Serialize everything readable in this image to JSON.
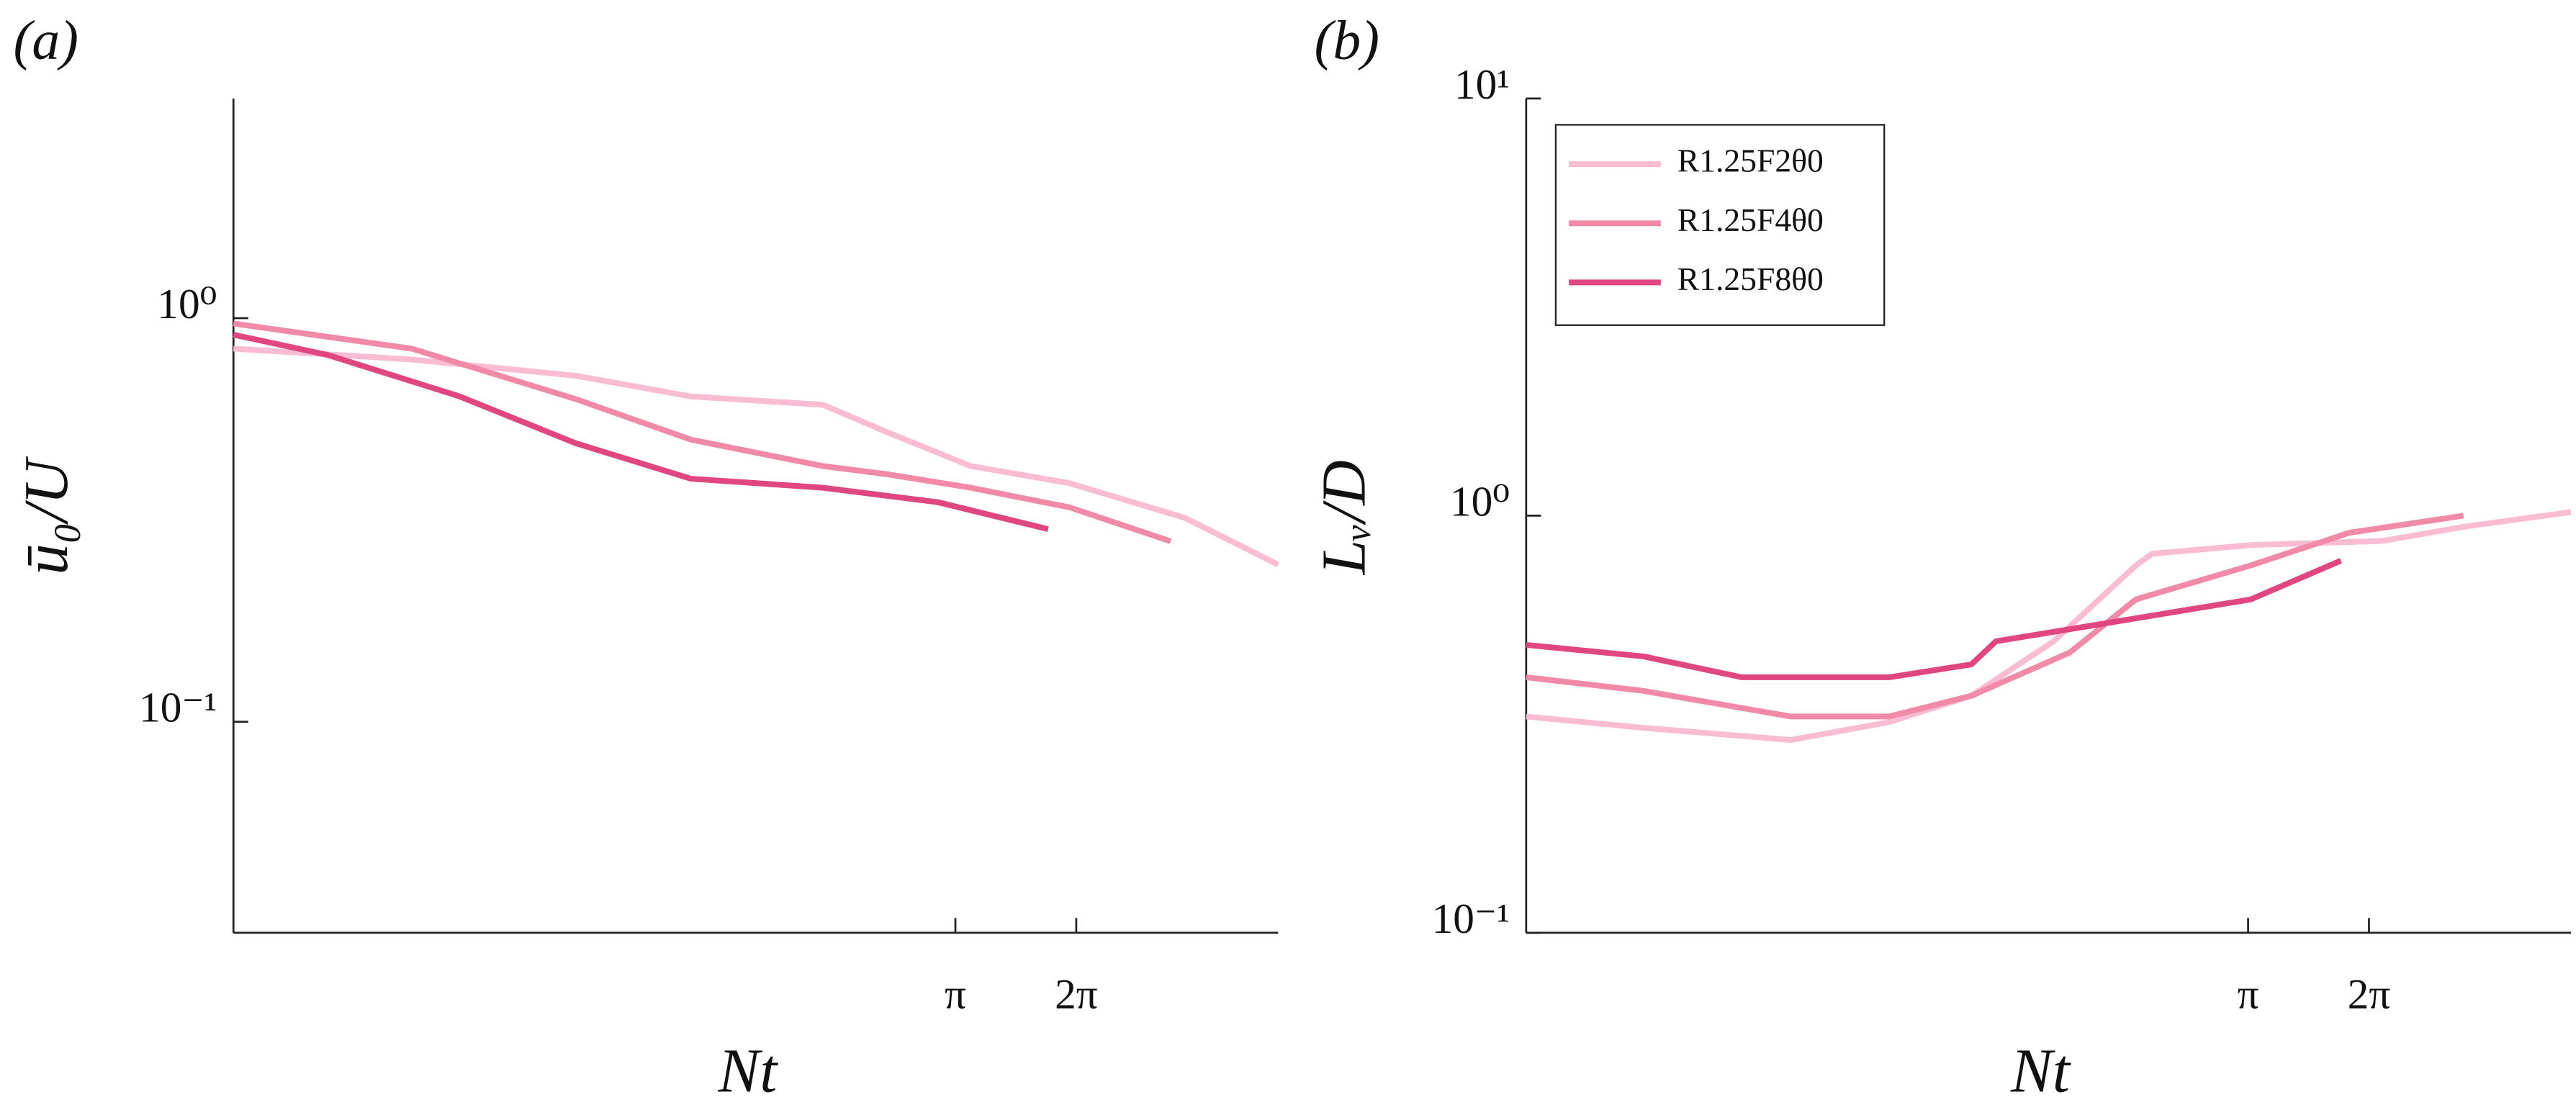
{
  "chart_data": [
    {
      "type": "line",
      "label": "(a)",
      "xlabel": "Nt",
      "ylabel": "ū₀/U",
      "log_x": true,
      "log_y": true,
      "xlim": [
        0.05,
        20
      ],
      "ylim": [
        0.03,
        3.5
      ],
      "xticks": [
        {
          "value": 3.14159,
          "label": "π"
        },
        {
          "value": 6.28318,
          "label": "2π"
        }
      ],
      "yticks": [
        {
          "value": 0.1,
          "label": "10⁻¹"
        },
        {
          "value": 1,
          "label": "10⁰"
        }
      ],
      "series": [
        {
          "color": "#f9bcd3",
          "x": [
            0.05,
            0.139,
            0.356,
            0.689,
            1.47,
            2.14,
            3.43,
            6.04,
            11.7,
            20
          ],
          "values": [
            0.84,
            0.79,
            0.72,
            0.64,
            0.61,
            0.52,
            0.43,
            0.39,
            0.32,
            0.245
          ]
        },
        {
          "color": "#f08aa8",
          "x": [
            0.05,
            0.139,
            0.356,
            0.689,
            1.47,
            2.14,
            3.43,
            6.04,
            10.8
          ],
          "values": [
            0.97,
            0.84,
            0.63,
            0.5,
            0.43,
            0.41,
            0.38,
            0.34,
            0.28
          ]
        },
        {
          "color": "#e0467f",
          "x": [
            0.05,
            0.086,
            0.183,
            0.356,
            0.689,
            1.47,
            2.84,
            5.35
          ],
          "values": [
            0.91,
            0.81,
            0.64,
            0.49,
            0.4,
            0.38,
            0.35,
            0.3
          ]
        }
      ]
    },
    {
      "type": "line",
      "label": "(b)",
      "xlabel": "Nt",
      "ylabel": "Lᵥ/D",
      "log_x": true,
      "log_y": true,
      "xlim": [
        0.05,
        20
      ],
      "ylim": [
        0.1,
        10
      ],
      "legend": "upper left",
      "xticks": [
        {
          "value": 3.14159,
          "label": "π"
        },
        {
          "value": 6.28318,
          "label": "2π"
        }
      ],
      "yticks": [
        {
          "value": 0.1,
          "label": "10⁻¹"
        },
        {
          "value": 1,
          "label": "10⁰"
        },
        {
          "value": 10,
          "label": "10¹"
        }
      ],
      "series": [
        {
          "name": "R1.25F2θ0",
          "color": "#f9bcd3",
          "x": [
            0.05,
            0.098,
            0.228,
            0.401,
            0.642,
            1.03,
            1.65,
            1.81,
            3.19,
            6.78,
            10.8,
            20
          ],
          "values": [
            0.33,
            0.31,
            0.29,
            0.32,
            0.37,
            0.5,
            0.76,
            0.81,
            0.85,
            0.87,
            0.94,
            1.02
          ]
        },
        {
          "name": "R1.25F4θ0",
          "color": "#f08aa8",
          "x": [
            0.05,
            0.098,
            0.228,
            0.401,
            0.642,
            1.13,
            1.65,
            3.19,
            5.61,
            10.8
          ],
          "values": [
            0.41,
            0.38,
            0.33,
            0.33,
            0.37,
            0.47,
            0.63,
            0.76,
            0.91,
            1.0
          ]
        },
        {
          "name": "R1.25F8θ0",
          "color": "#e0467f",
          "x": [
            0.05,
            0.098,
            0.172,
            0.401,
            0.642,
            0.74,
            1.36,
            3.19,
            5.35
          ],
          "values": [
            0.49,
            0.46,
            0.41,
            0.41,
            0.44,
            0.5,
            0.55,
            0.63,
            0.78
          ]
        }
      ]
    }
  ]
}
